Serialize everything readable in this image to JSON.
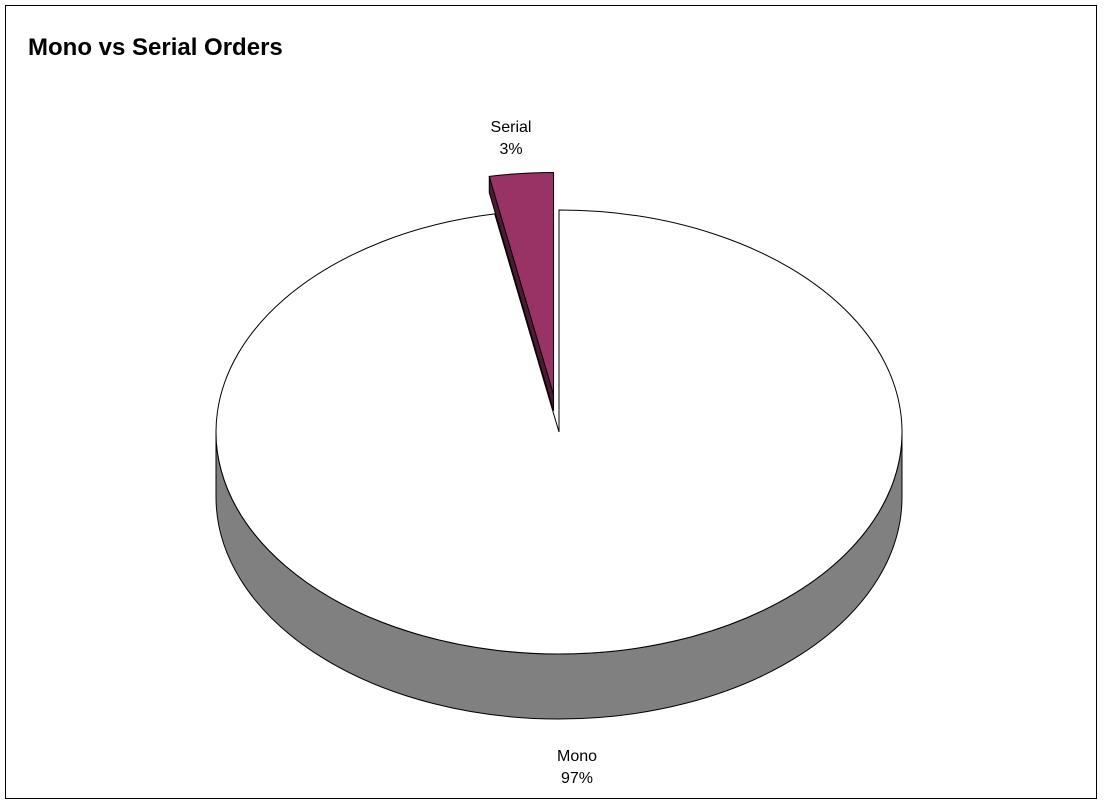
{
  "chart_data": {
    "type": "pie",
    "title": "Mono vs Serial Orders",
    "style": "3d",
    "slices": [
      {
        "name": "Mono",
        "value": 97,
        "label": "97%",
        "color": "#FFFFFF",
        "side_color": "#808080",
        "exploded": false
      },
      {
        "name": "Serial",
        "value": 3,
        "label": "3%",
        "color": "#993366",
        "side_color": "#4D1A33",
        "exploded": true
      }
    ],
    "legend": "none"
  }
}
